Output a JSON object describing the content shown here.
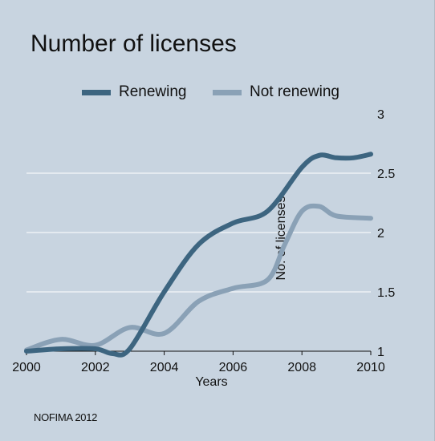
{
  "chart_data": {
    "type": "line",
    "title": "Number of licenses",
    "xlabel": "Years",
    "ylabel": "No. of licenses",
    "xlim": [
      2000,
      2010
    ],
    "ylim": [
      1,
      3
    ],
    "x_ticks": [
      "2000",
      "2002",
      "2004",
      "2006",
      "2008",
      "2010"
    ],
    "y_ticks": [
      "1",
      "1.5",
      "2",
      "2.5",
      "3"
    ],
    "grid": true,
    "legend_position": "top",
    "series": [
      {
        "name": "Renewing",
        "color": "#3d6580",
        "x": [
          2000,
          2001,
          2002,
          2002.5,
          2003,
          2004,
          2005,
          2006,
          2007,
          2008,
          2008.5,
          2009,
          2009.5,
          2010
        ],
        "y": [
          1.0,
          1.02,
          1.02,
          0.98,
          1.02,
          1.5,
          1.9,
          2.08,
          2.18,
          2.55,
          2.65,
          2.63,
          2.63,
          2.66
        ]
      },
      {
        "name": "Not renewing",
        "color": "#8aa1b6",
        "x": [
          2000,
          2001,
          2002,
          2003,
          2004,
          2005,
          2006,
          2007,
          2007.5,
          2008,
          2008.5,
          2009,
          2010
        ],
        "y": [
          1.01,
          1.1,
          1.05,
          1.2,
          1.15,
          1.42,
          1.53,
          1.6,
          1.9,
          2.18,
          2.22,
          2.14,
          2.12
        ]
      }
    ]
  },
  "footer": {
    "source": "NOFIMA 2012"
  }
}
